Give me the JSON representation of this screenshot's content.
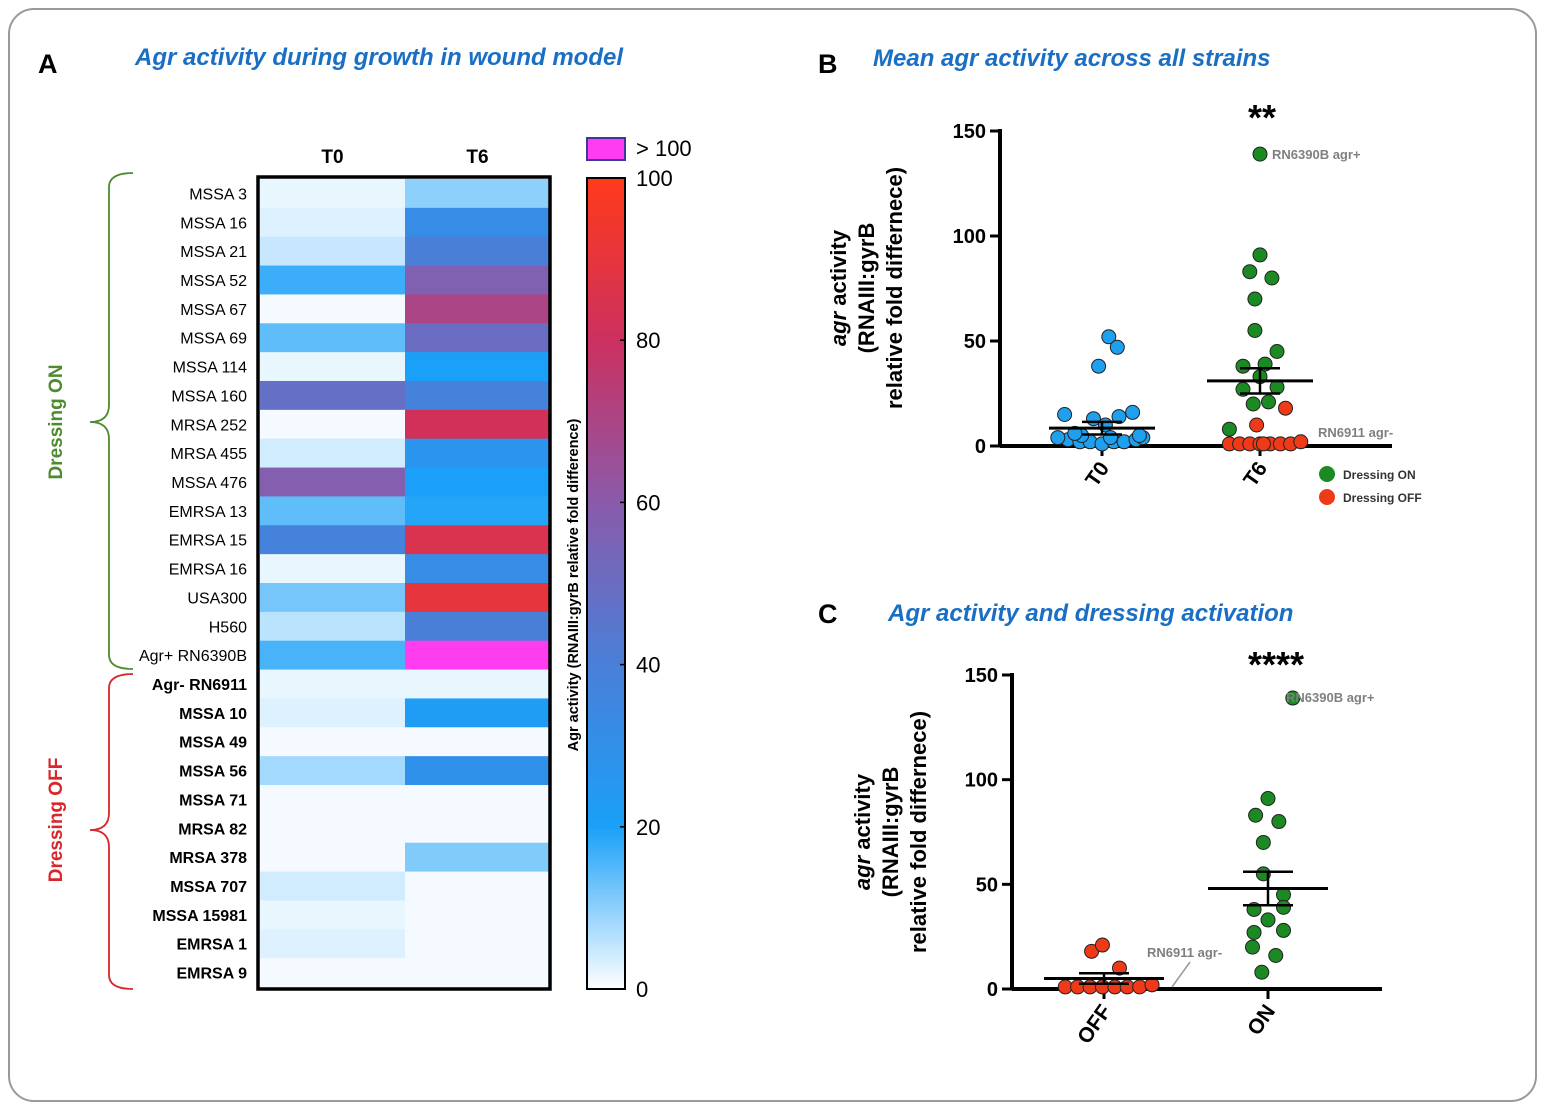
{
  "colors": {
    "title_blue": "#1a6fc4",
    "dressing_on": "#4e8a2e",
    "dressing_off": "#d8262a",
    "dot_blue": "#1ea0ee",
    "dot_green": "#1b8a22",
    "dot_red": "#ef3a1a",
    "annotation": "#7f7f7f",
    "over_100": "#ff3cf0"
  },
  "panel_a": {
    "letter": "A",
    "title": "Agr activity during growth in wound model",
    "group_on_label": "Dressing ON",
    "group_off_label": "Dressing OFF"
  },
  "panel_b": {
    "letter": "B",
    "title": "Mean agr activity across all strains",
    "significance": "**",
    "ylabel_italic": "agr",
    "ylabel_rest": " activity",
    "ylabel_line2": "(RNAIII:gyrB",
    "ylabel_line3": "relative fold differnece)",
    "annotation_high": "RN6390B agr+",
    "annotation_low": "RN6911 agr-",
    "legend_on": "Dressing ON",
    "legend_off": "Dressing OFF"
  },
  "panel_c": {
    "letter": "C",
    "title": "Agr activity and dressing activation",
    "significance": "****",
    "ylabel_italic": "agr",
    "ylabel_rest": " activity",
    "ylabel_line2": "(RNAIII:gyrB",
    "ylabel_line3": "relative fold differnece)",
    "annotation_high": "RN6390B agr+",
    "annotation_low": "RN6911 agr-"
  },
  "chart_data": [
    {
      "type": "heatmap",
      "title": "Agr activity during growth in wound model",
      "columns": [
        "T0",
        "T6"
      ],
      "rows": [
        "MSSA 3",
        "MSSA 16",
        "MSSA 21",
        "MSSA 52",
        "MSSA 67",
        "MSSA 69",
        "MSSA 114",
        "MSSA 160",
        "MRSA 252",
        "MRSA 455",
        "MSSA 476",
        "EMRSA 13",
        "EMRSA 15",
        "EMRSA 16",
        "USA300",
        "H560",
        "Agr+ RN6390B",
        "Agr- RN6911",
        "MSSA 10",
        "MSSA 49",
        "MSSA 56",
        "MSSA 71",
        "MRSA 82",
        "MRSA 378",
        "MSSA 707",
        "MSSA 15981",
        "EMRSA 1",
        "EMRSA 9"
      ],
      "bold_rows": [
        "Agr- RN6911",
        "MSSA 10",
        "MSSA 49",
        "MSSA 56",
        "MSSA 71",
        "MRSA 82",
        "MRSA 378",
        "MSSA 707",
        "MSSA 15981",
        "EMRSA 1",
        "EMRSA 9"
      ],
      "groups": [
        {
          "label": "Dressing ON",
          "rows": [
            "MSSA 3",
            "Agr+ RN6390B"
          ]
        },
        {
          "label": "Dressing OFF",
          "rows": [
            "Agr- RN6911",
            "EMRSA 9"
          ]
        }
      ],
      "values": [
        [
          2,
          10
        ],
        [
          3,
          32
        ],
        [
          5,
          40
        ],
        [
          17,
          57
        ],
        [
          1,
          70
        ],
        [
          14,
          50
        ],
        [
          2,
          20
        ],
        [
          48,
          38
        ],
        [
          1,
          82
        ],
        [
          4,
          27
        ],
        [
          58,
          20
        ],
        [
          14,
          19
        ],
        [
          38,
          85
        ],
        [
          2,
          32
        ],
        [
          12,
          90
        ],
        [
          6,
          40
        ],
        [
          16,
          140
        ],
        [
          2,
          2
        ],
        [
          3,
          22
        ],
        [
          1,
          1
        ],
        [
          8,
          29
        ],
        [
          1,
          1
        ],
        [
          1,
          1
        ],
        [
          1,
          11
        ],
        [
          4,
          1
        ],
        [
          2,
          1
        ],
        [
          3,
          1
        ],
        [
          1,
          1
        ]
      ],
      "colorbar": {
        "label": "Agr activity (RNAIII:gyrB relative fold difference)",
        "ticks": [
          0,
          20,
          40,
          60,
          80,
          100
        ],
        "range": [
          0,
          100
        ],
        "over_label": "> 100"
      }
    },
    {
      "type": "scatter",
      "title": "Mean agr activity across all strains",
      "categories": [
        "T0",
        "T6"
      ],
      "ylabel": "agr activity (RNAIII:gyrB relative fold differnece)",
      "ylim": [
        0,
        150
      ],
      "yticks": [
        0,
        50,
        100,
        150
      ],
      "series": [
        {
          "name": "T0",
          "category": "T0",
          "color_key": "dot_blue",
          "points": [
            [
              -0.2,
              3
            ],
            [
              -0.13,
              2
            ],
            [
              -0.07,
              2
            ],
            [
              0.0,
              1
            ],
            [
              0.07,
              2
            ],
            [
              0.13,
              2
            ],
            [
              0.2,
              3
            ],
            [
              -0.22,
              15
            ],
            [
              -0.12,
              5
            ],
            [
              -0.05,
              13
            ],
            [
              0.02,
              10
            ],
            [
              0.1,
              14
            ],
            [
              0.18,
              16
            ],
            [
              0.24,
              4
            ],
            [
              -0.16,
              6
            ],
            [
              0.05,
              4
            ],
            [
              -0.02,
              38
            ],
            [
              0.04,
              52
            ],
            [
              0.09,
              47
            ],
            [
              -0.26,
              4
            ],
            [
              0.22,
              5
            ]
          ],
          "mean": 8.5,
          "sem_low": 5.5,
          "sem_high": 11.5
        },
        {
          "name": "Dressing ON",
          "category": "T6",
          "color_key": "dot_green",
          "points": [
            [
              0.0,
              139
            ],
            [
              0.0,
              91
            ],
            [
              -0.06,
              83
            ],
            [
              0.07,
              80
            ],
            [
              -0.03,
              70
            ],
            [
              -0.03,
              55
            ],
            [
              0.1,
              45
            ],
            [
              -0.1,
              38
            ],
            [
              0.03,
              39
            ],
            [
              0.0,
              33
            ],
            [
              0.1,
              28
            ],
            [
              -0.1,
              27
            ],
            [
              -0.04,
              20
            ],
            [
              0.05,
              21
            ],
            [
              -0.18,
              8
            ]
          ],
          "mean": 31,
          "sem_low": 25,
          "sem_high": 37
        },
        {
          "name": "Dressing OFF",
          "category": "T6",
          "color_key": "dot_red",
          "points": [
            [
              -0.18,
              1
            ],
            [
              -0.12,
              1
            ],
            [
              -0.06,
              1
            ],
            [
              0.0,
              1
            ],
            [
              0.06,
              1
            ],
            [
              0.12,
              1
            ],
            [
              0.18,
              1
            ],
            [
              0.24,
              2
            ],
            [
              0.15,
              18
            ],
            [
              -0.02,
              10
            ],
            [
              0.02,
              1
            ]
          ]
        }
      ],
      "annotations": [
        "RN6390B agr+",
        "RN6911 agr-"
      ],
      "significance": "**",
      "legend": [
        "Dressing ON",
        "Dressing OFF"
      ]
    },
    {
      "type": "scatter",
      "title": "Agr activity and dressing activation",
      "categories": [
        "OFF",
        "ON"
      ],
      "ylabel": "agr activity (RNAIII:gyrB relative fold differnece)",
      "ylim": [
        0,
        150
      ],
      "yticks": [
        0,
        50,
        100,
        150
      ],
      "series": [
        {
          "name": "OFF",
          "category": "OFF",
          "color_key": "dot_red",
          "points": [
            [
              -0.25,
              1
            ],
            [
              -0.17,
              1
            ],
            [
              -0.09,
              1
            ],
            [
              -0.01,
              1
            ],
            [
              0.07,
              1
            ],
            [
              0.15,
              1
            ],
            [
              0.23,
              1
            ],
            [
              0.1,
              10
            ],
            [
              -0.08,
              18
            ],
            [
              -0.01,
              21
            ],
            [
              0.31,
              2
            ]
          ],
          "mean": 5,
          "sem_low": 2.5,
          "sem_high": 7.5
        },
        {
          "name": "ON",
          "category": "ON",
          "color_key": "dot_green",
          "points": [
            [
              0.16,
              139
            ],
            [
              0.0,
              91
            ],
            [
              -0.08,
              83
            ],
            [
              0.07,
              80
            ],
            [
              -0.03,
              70
            ],
            [
              -0.03,
              55
            ],
            [
              0.1,
              45
            ],
            [
              -0.09,
              38
            ],
            [
              0.1,
              39
            ],
            [
              0.0,
              33
            ],
            [
              0.1,
              28
            ],
            [
              -0.09,
              27
            ],
            [
              -0.1,
              20
            ],
            [
              0.05,
              16
            ],
            [
              -0.04,
              8
            ]
          ],
          "mean": 48,
          "sem_low": 40,
          "sem_high": 56
        }
      ],
      "annotations": [
        "RN6390B agr+",
        "RN6911 agr-"
      ],
      "significance": "****"
    }
  ]
}
